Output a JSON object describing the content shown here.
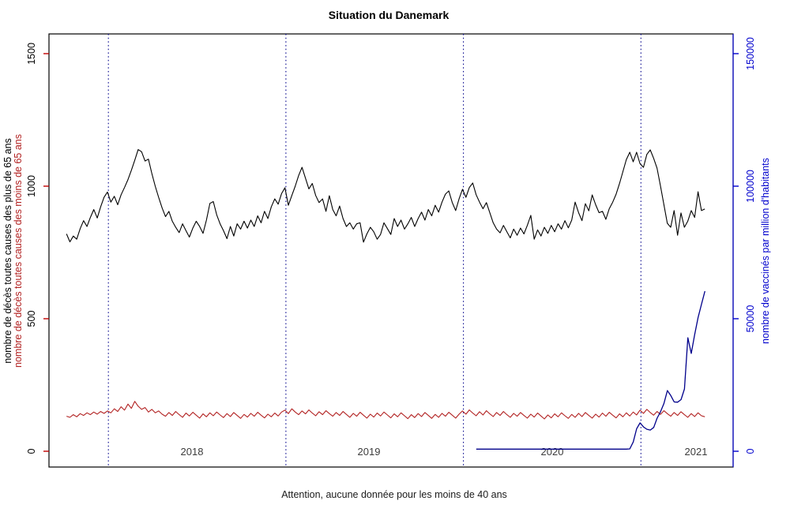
{
  "title": "Situation du Danemark",
  "caption": "Attention, aucune donnée pour les moins de 40 ans",
  "axes": {
    "left": {
      "title_over65": "nombre de décès toutes causes des plus de 65 ans",
      "title_under65": "nombre de décès toutes causes des moins de 65 ans",
      "ticks": [
        "0",
        "500",
        "1000",
        "1500"
      ],
      "tick_values": [
        0,
        500,
        1000,
        1500
      ],
      "range": [
        0,
        1500
      ]
    },
    "right": {
      "title": "nombre de vaccinés par million d'habitants",
      "ticks": [
        "0",
        "50000",
        "100000",
        "150000"
      ],
      "tick_values": [
        0,
        50000,
        100000,
        150000
      ],
      "range": [
        0,
        150000
      ]
    },
    "x": {
      "year_labels": [
        "2018",
        "2019",
        "2020",
        "2021"
      ],
      "gridline_years": [
        2018,
        2019,
        2020,
        2021
      ],
      "range_years": [
        2017.72,
        2021.42
      ]
    }
  },
  "colors": {
    "deaths_over_65": "#000000",
    "deaths_under_65": "#b22222",
    "vaccinated": "#00008b",
    "gridline": "#00008b",
    "right_axis": "#0000cd",
    "left_tick": "#c00000",
    "year_label": "#3c3c3c",
    "box": "#000000"
  },
  "chart_data": {
    "type": "line",
    "title": "Situation du Danemark",
    "subtitle": "Attention, aucune donnée pour les moins de 40 ans",
    "x_unit": "decimal year, weekly points (step = 1/52)",
    "grid": "vertical dotted lines at each Jan 1",
    "legend": "none (series identified by colored axis titles)",
    "ylim_left": [
      0,
      1500
    ],
    "ylim_right": [
      0,
      150000
    ],
    "series": [
      {
        "name": "nombre de décès toutes causes des plus de 65 ans",
        "axis": "left",
        "color": "#000000",
        "start": 2017.764,
        "step": 0.019231,
        "values": [
          820,
          790,
          812,
          800,
          840,
          870,
          848,
          882,
          912,
          880,
          922,
          958,
          978,
          940,
          962,
          930,
          968,
          995,
          1025,
          1060,
          1098,
          1138,
          1130,
          1095,
          1102,
          1048,
          1000,
          958,
          918,
          885,
          905,
          868,
          845,
          825,
          858,
          832,
          808,
          842,
          868,
          848,
          822,
          872,
          935,
          942,
          892,
          858,
          832,
          802,
          848,
          812,
          858,
          838,
          868,
          842,
          872,
          848,
          888,
          862,
          905,
          878,
          922,
          952,
          932,
          972,
          994,
          928,
          965,
          1000,
          1040,
          1071,
          1030,
          990,
          1010,
          965,
          938,
          952,
          905,
          964,
          912,
          888,
          925,
          878,
          848,
          862,
          838,
          858,
          862,
          789,
          820,
          845,
          828,
          800,
          818,
          862,
          840,
          818,
          878,
          848,
          872,
          838,
          858,
          882,
          848,
          878,
          902,
          872,
          912,
          888,
          928,
          902,
          940,
          970,
          982,
          938,
          908,
          952,
          988,
          958,
          995,
          1012,
          968,
          940,
          915,
          938,
          900,
          862,
          838,
          824,
          852,
          828,
          805,
          838,
          815,
          842,
          820,
          852,
          890,
          800,
          835,
          812,
          845,
          822,
          852,
          828,
          858,
          838,
          870,
          843,
          872,
          940,
          900,
          870,
          934,
          907,
          967,
          930,
          900,
          905,
          875,
          915,
          940,
          970,
          1010,
          1055,
          1100,
          1128,
          1092,
          1128,
          1085,
          1071,
          1120,
          1137,
          1105,
          1068,
          1000,
          930,
          860,
          845,
          908,
          815,
          899,
          845,
          868,
          908,
          882,
          979,
          908,
          914
        ]
      },
      {
        "name": "nombre de décès toutes causes des moins de 65 ans",
        "axis": "left",
        "color": "#b22222",
        "start": 2017.764,
        "step": 0.019231,
        "values": [
          132,
          128,
          138,
          130,
          142,
          135,
          145,
          138,
          148,
          140,
          150,
          143,
          152,
          145,
          160,
          150,
          168,
          155,
          178,
          162,
          188,
          170,
          158,
          165,
          148,
          158,
          145,
          152,
          140,
          132,
          146,
          135,
          150,
          138,
          128,
          144,
          133,
          147,
          136,
          125,
          141,
          130,
          145,
          134,
          148,
          137,
          127,
          142,
          131,
          146,
          135,
          124,
          139,
          129,
          143,
          132,
          147,
          136,
          126,
          140,
          130,
          144,
          133,
          148,
          155,
          142,
          160,
          148,
          138,
          152,
          141,
          156,
          144,
          134,
          149,
          138,
          153,
          142,
          132,
          146,
          135,
          150,
          139,
          128,
          143,
          132,
          147,
          136,
          125,
          140,
          129,
          144,
          133,
          148,
          137,
          126,
          141,
          130,
          145,
          134,
          123,
          138,
          127,
          142,
          131,
          146,
          135,
          124,
          139,
          128,
          143,
          132,
          147,
          136,
          125,
          140,
          152,
          140,
          156,
          144,
          134,
          149,
          137,
          153,
          141,
          131,
          146,
          135,
          150,
          138,
          128,
          143,
          132,
          146,
          135,
          125,
          140,
          129,
          144,
          133,
          122,
          137,
          126,
          141,
          130,
          145,
          134,
          124,
          139,
          128,
          143,
          131,
          146,
          135,
          125,
          140,
          129,
          144,
          132,
          147,
          136,
          126,
          141,
          130,
          145,
          133,
          148,
          137,
          155,
          143,
          158,
          146,
          136,
          150,
          139,
          153,
          142,
          132,
          146,
          135,
          149,
          138,
          128,
          142,
          131,
          145,
          134,
          130
        ]
      },
      {
        "name": "nombre de vaccinés par million d'habitants",
        "axis": "right",
        "color": "#00008b",
        "start": 2020.072,
        "step": 0.019231,
        "values": [
          800,
          800,
          800,
          800,
          800,
          800,
          800,
          800,
          800,
          800,
          800,
          800,
          800,
          800,
          800,
          800,
          800,
          800,
          800,
          800,
          800,
          800,
          800,
          800,
          800,
          800,
          800,
          800,
          800,
          800,
          800,
          800,
          800,
          800,
          800,
          800,
          800,
          800,
          800,
          800,
          800,
          800,
          800,
          800,
          800,
          900,
          3500,
          8500,
          10700,
          9200,
          8300,
          8000,
          9000,
          12500,
          14900,
          18000,
          22900,
          21000,
          18600,
          18500,
          19500,
          23500,
          42800,
          36900,
          44000,
          50500,
          55500,
          60400
        ]
      }
    ]
  }
}
